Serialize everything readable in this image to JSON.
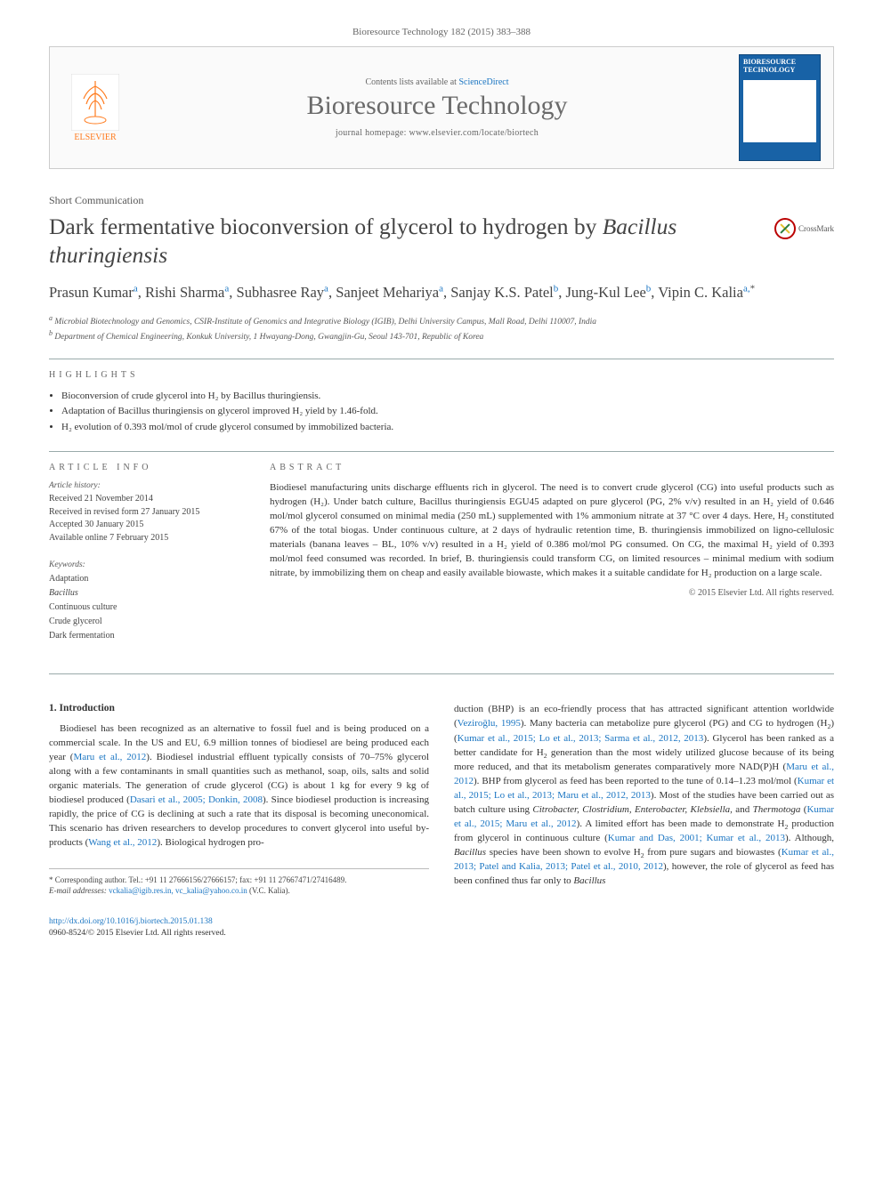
{
  "header": {
    "journal_ref": "Bioresource Technology 182 (2015) 383–388",
    "contents_line_prefix": "Contents lists available at ",
    "contents_link": "ScienceDirect",
    "journal_title": "Bioresource Technology",
    "homepage_label": "journal homepage: www.elsevier.com/locate/biortech",
    "publisher_name": "ELSEVIER",
    "cover_title": "BIORESOURCE TECHNOLOGY"
  },
  "article": {
    "type": "Short Communication",
    "title_prefix": "Dark fermentative bioconversion of glycerol to hydrogen by ",
    "title_species": "Bacillus thuringiensis",
    "crossmark": "CrossMark",
    "authors_html": "Prasun Kumar<sup>a</sup>, Rishi Sharma<sup>a</sup>, Subhasree Ray<sup>a</sup>, Sanjeet Mehariya<sup>a</sup>, Sanjay K.S. Patel<sup>b</sup>, Jung-Kul Lee<sup>b</sup>, Vipin C. Kalia<sup>a,</sup><sup class=\"sup-star\">*</sup>",
    "affiliations": [
      {
        "sup": "a",
        "text": "Microbial Biotechnology and Genomics, CSIR-Institute of Genomics and Integrative Biology (IGIB), Delhi University Campus, Mall Road, Delhi 110007, India"
      },
      {
        "sup": "b",
        "text": "Department of Chemical Engineering, Konkuk University, 1 Hwayang-Dong, Gwangjin-Gu, Seoul 143-701, Republic of Korea"
      }
    ]
  },
  "highlights": {
    "heading": "HIGHLIGHTS",
    "items": [
      "Bioconversion of crude glycerol into H₂ by Bacillus thuringiensis.",
      "Adaptation of Bacillus thuringiensis on glycerol improved H₂ yield by 1.46-fold.",
      "H₂ evolution of 0.393 mol/mol of crude glycerol consumed by immobilized bacteria."
    ]
  },
  "info": {
    "article_info_heading": "ARTICLE INFO",
    "history_heading": "Article history:",
    "history": [
      "Received 21 November 2014",
      "Received in revised form 27 January 2015",
      "Accepted 30 January 2015",
      "Available online 7 February 2015"
    ],
    "keywords_heading": "Keywords:",
    "keywords": [
      "Adaptation",
      "Bacillus",
      "Continuous culture",
      "Crude glycerol",
      "Dark fermentation"
    ]
  },
  "abstract": {
    "heading": "ABSTRACT",
    "text": "Biodiesel manufacturing units discharge effluents rich in glycerol. The need is to convert crude glycerol (CG) into useful products such as hydrogen (H₂). Under batch culture, Bacillus thuringiensis EGU45 adapted on pure glycerol (PG, 2% v/v) resulted in an H₂ yield of 0.646 mol/mol glycerol consumed on minimal media (250 mL) supplemented with 1% ammonium nitrate at 37 °C over 4 days. Here, H₂ constituted 67% of the total biogas. Under continuous culture, at 2 days of hydraulic retention time, B. thuringiensis immobilized on ligno-cellulosic materials (banana leaves – BL, 10% v/v) resulted in a H₂ yield of 0.386 mol/mol PG consumed. On CG, the maximal H₂ yield of 0.393 mol/mol feed consumed was recorded. In brief, B. thuringiensis could transform CG, on limited resources – minimal medium with sodium nitrate, by immobilizing them on cheap and easily available biowaste, which makes it a suitable candidate for H₂ production on a large scale.",
    "copyright": "© 2015 Elsevier Ltd. All rights reserved."
  },
  "body": {
    "intro_heading": "1. Introduction",
    "col1": "Biodiesel has been recognized as an alternative to fossil fuel and is being produced on a commercial scale. In the US and EU, 6.9 million tonnes of biodiesel are being produced each year (<span class=\"cite\">Maru et al., 2012</span>). Biodiesel industrial effluent typically consists of 70–75% glycerol along with a few contaminants in small quantities such as methanol, soap, oils, salts and solid organic materials. The generation of crude glycerol (CG) is about 1 kg for every 9 kg of biodiesel produced (<span class=\"cite\">Dasari et al., 2005; Donkin, 2008</span>). Since biodiesel production is increasing rapidly, the price of CG is declining at such a rate that its disposal is becoming uneconomical. This scenario has driven researchers to develop procedures to convert glycerol into useful by-products (<span class=\"cite\">Wang et al., 2012</span>). Biological hydrogen pro-",
    "col2": "duction (BHP) is an eco-friendly process that has attracted significant attention worldwide (<span class=\"cite\">Veziroğlu, 1995</span>). Many bacteria can metabolize pure glycerol (PG) and CG to hydrogen (H<sub>2</sub>) (<span class=\"cite\">Kumar et al., 2015; Lo et al., 2013; Sarma et al., 2012, 2013</span>). Glycerol has been ranked as a better candidate for H<sub>2</sub> generation than the most widely utilized glucose because of its being more reduced, and that its metabolism generates comparatively more NAD(P)H (<span class=\"cite\">Maru et al., 2012</span>). BHP from glycerol as feed has been reported to the tune of 0.14–1.23 mol/mol (<span class=\"cite\">Kumar et al., 2015; Lo et al., 2013; Maru et al., 2012, 2013</span>). Most of the studies have been carried out as batch culture using <span class=\"italic\">Citrobacter, Clostridium, Enterobacter, Klebsiella,</span> and <span class=\"italic\">Thermotoga</span> (<span class=\"cite\">Kumar et al., 2015; Maru et al., 2012</span>). A limited effort has been made to demonstrate H<sub>2</sub> production from glycerol in continuous culture (<span class=\"cite\">Kumar and Das, 2001; Kumar et al., 2013</span>). Although, <span class=\"italic\">Bacillus</span> species have been shown to evolve H<sub>2</sub> from pure sugars and biowastes (<span class=\"cite\">Kumar et al., 2013; Patel and Kalia, 2013; Patel et al., 2010, 2012</span>), however, the role of glycerol as feed has been confined thus far only to <span class=\"italic\">Bacillus</span>"
  },
  "footnotes": {
    "corr": "* Corresponding author. Tel.: +91 11 27666156/27666157; fax: +91 11 27667471/27416489.",
    "email_label": "E-mail addresses: ",
    "emails": "vckalia@igib.res.in, vc_kalia@yahoo.co.in",
    "email_suffix": " (V.C. Kalia)."
  },
  "doi": {
    "url": "http://dx.doi.org/10.1016/j.biortech.2015.01.138",
    "issn_line": "0960-8524/© 2015 Elsevier Ltd. All rights reserved."
  },
  "colors": {
    "link": "#1a75c2",
    "orange": "#ff7b1e",
    "text": "#333333",
    "rule": "#99aaaa"
  }
}
